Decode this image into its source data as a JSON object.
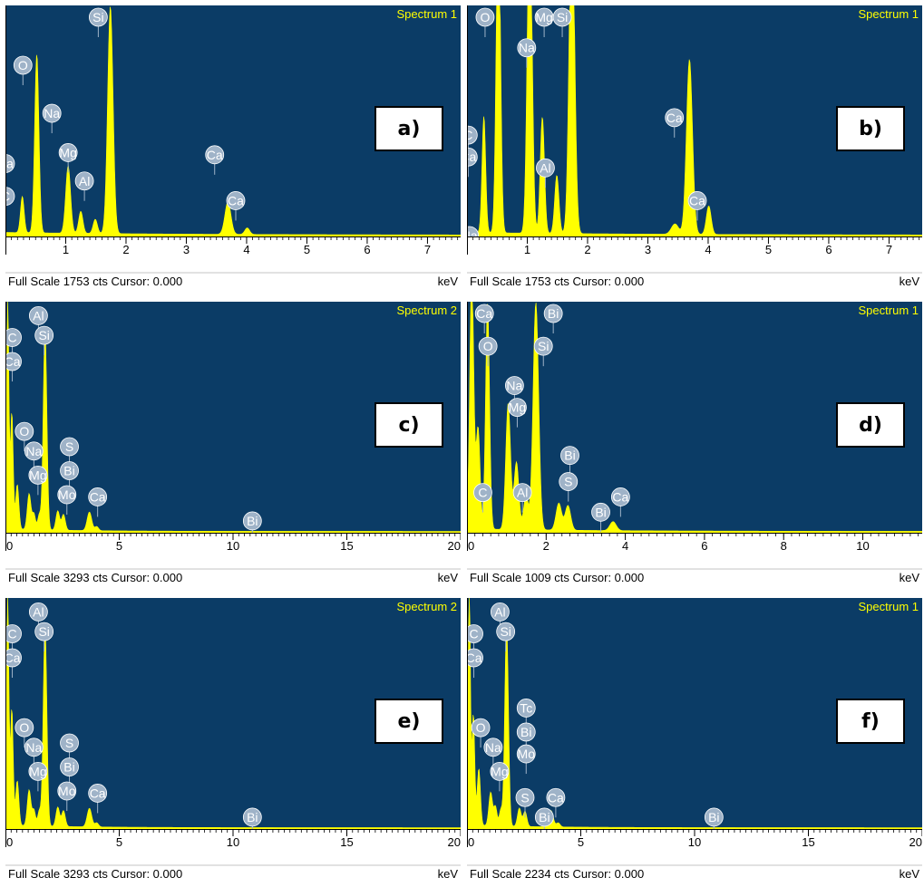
{
  "colors": {
    "plot_bg": "#0B3C66",
    "spectrum": "#FFFF00",
    "label_text": "#FFFF00",
    "footer_bg": "#FFFFFF",
    "footer_text": "#000000",
    "marker_fill": "#9FB3C8",
    "marker_text": "#FFFFFF"
  },
  "chart_data": [
    {
      "type": "area",
      "panel_tag": "a)",
      "spectrum_label": "Spectrum 1",
      "xlim": [
        0,
        7.55
      ],
      "ylim": [
        0,
        1753
      ],
      "xticks": [
        1,
        2,
        3,
        4,
        5,
        6,
        7
      ],
      "minor_step": 0.1,
      "footer_left": "Full Scale 1753 cts Cursor: 0.000",
      "footer_right": "keV",
      "peaks": [
        [
          0.28,
          280,
          0.03
        ],
        [
          0.52,
          1380,
          0.035
        ],
        [
          1.04,
          520,
          0.04
        ],
        [
          1.25,
          170,
          0.035
        ],
        [
          1.49,
          110,
          0.035
        ],
        [
          1.74,
          1753,
          0.045
        ],
        [
          3.69,
          250,
          0.05
        ],
        [
          4.01,
          50,
          0.04
        ]
      ],
      "elements": [
        {
          "label": "C",
          "energy": 0.0,
          "level": 0.18
        },
        {
          "label": "Ca",
          "energy": 0.0,
          "level": 0.33
        },
        {
          "label": "O",
          "energy": 0.29,
          "level": 0.78
        },
        {
          "label": "Na",
          "energy": 0.77,
          "level": 0.56
        },
        {
          "label": "Mg",
          "energy": 1.04,
          "level": 0.38
        },
        {
          "label": "Al",
          "energy": 1.31,
          "level": 0.25
        },
        {
          "label": "Si",
          "energy": 1.54,
          "level": 1.0
        },
        {
          "label": "Ca",
          "energy": 3.47,
          "level": 0.37
        },
        {
          "label": "Ca",
          "energy": 3.82,
          "level": 0.16
        }
      ]
    },
    {
      "type": "area",
      "panel_tag": "b)",
      "spectrum_label": "Spectrum 1",
      "xlim": [
        0,
        7.55
      ],
      "ylim": [
        0,
        1753
      ],
      "xticks": [
        1,
        2,
        3,
        4,
        5,
        6,
        7
      ],
      "minor_step": 0.1,
      "footer_left": "Full Scale 1753 cts Cursor: 0.000",
      "footer_right": "keV",
      "peaks": [
        [
          0.28,
          900,
          0.03
        ],
        [
          0.52,
          2600,
          0.035
        ],
        [
          1.04,
          2600,
          0.04
        ],
        [
          1.25,
          900,
          0.035
        ],
        [
          1.49,
          450,
          0.035
        ],
        [
          1.74,
          2600,
          0.045
        ],
        [
          3.69,
          1350,
          0.05
        ],
        [
          4.01,
          220,
          0.04
        ],
        [
          3.45,
          80,
          0.06
        ]
      ],
      "elements": [
        {
          "label": "C",
          "energy": 0.02,
          "level": 0.46
        },
        {
          "label": "Ca",
          "energy": 0.02,
          "level": 0.36
        },
        {
          "label": "O",
          "energy": 0.3,
          "level": 1.0
        },
        {
          "label": "Na",
          "energy": 0.04,
          "level": 0.0
        },
        {
          "label": "Mg",
          "energy": 1.28,
          "level": 1.0
        },
        {
          "label": "Na",
          "energy": 0.99,
          "level": 0.86
        },
        {
          "label": "Si",
          "energy": 1.58,
          "level": 1.0
        },
        {
          "label": "Al",
          "energy": 1.3,
          "level": 0.31
        },
        {
          "label": "Ca",
          "energy": 3.44,
          "level": 0.54
        },
        {
          "label": "Ca",
          "energy": 3.82,
          "level": 0.16
        }
      ]
    },
    {
      "type": "area",
      "panel_tag": "c)",
      "spectrum_label": "Spectrum 2",
      "xlim": [
        0,
        20
      ],
      "ylim": [
        0,
        3293
      ],
      "xticks": [
        0,
        5,
        10,
        15,
        20
      ],
      "minor_step": 0.25,
      "footer_left": "Full Scale 3293 cts Cursor: 0.000",
      "footer_right": "keV",
      "peaks": [
        [
          0.1,
          3400,
          0.05
        ],
        [
          0.28,
          1700,
          0.06
        ],
        [
          0.52,
          650,
          0.07
        ],
        [
          1.04,
          520,
          0.08
        ],
        [
          1.25,
          230,
          0.07
        ],
        [
          1.49,
          220,
          0.07
        ],
        [
          1.74,
          2900,
          0.08
        ],
        [
          2.3,
          280,
          0.08
        ],
        [
          2.55,
          230,
          0.08
        ],
        [
          3.69,
          270,
          0.1
        ],
        [
          4.01,
          60,
          0.08
        ]
      ],
      "elements": [
        {
          "label": "C",
          "energy": 0.3,
          "level": 0.89
        },
        {
          "label": "Al",
          "energy": 1.45,
          "level": 0.99
        },
        {
          "label": "Ca",
          "energy": 0.3,
          "level": 0.78
        },
        {
          "label": "Si",
          "energy": 1.7,
          "level": 0.9
        },
        {
          "label": "O",
          "energy": 0.83,
          "level": 0.46
        },
        {
          "label": "S",
          "energy": 2.81,
          "level": 0.39
        },
        {
          "label": "Na",
          "energy": 1.25,
          "level": 0.37
        },
        {
          "label": "Bi",
          "energy": 2.81,
          "level": 0.28
        },
        {
          "label": "Mg",
          "energy": 1.43,
          "level": 0.26
        },
        {
          "label": "Mo",
          "energy": 2.7,
          "level": 0.17
        },
        {
          "label": "Ca",
          "energy": 4.05,
          "level": 0.16
        },
        {
          "label": "Bi",
          "energy": 10.85,
          "level": 0.05
        }
      ]
    },
    {
      "type": "area",
      "panel_tag": "d)",
      "spectrum_label": "Spectrum 1",
      "xlim": [
        0,
        11.5
      ],
      "ylim": [
        0,
        1009
      ],
      "xticks": [
        0,
        2,
        4,
        6,
        8,
        10
      ],
      "minor_step": 0.2,
      "footer_left": "Full Scale 1009 cts Cursor: 0.000",
      "footer_right": "keV",
      "peaks": [
        [
          0.12,
          1150,
          0.05
        ],
        [
          0.28,
          450,
          0.05
        ],
        [
          0.52,
          1000,
          0.05
        ],
        [
          1.04,
          560,
          0.06
        ],
        [
          1.25,
          300,
          0.06
        ],
        [
          1.49,
          150,
          0.06
        ],
        [
          1.74,
          1010,
          0.07
        ],
        [
          2.32,
          120,
          0.07
        ],
        [
          2.55,
          110,
          0.07
        ],
        [
          3.69,
          40,
          0.08
        ]
      ],
      "elements": [
        {
          "label": "Ca",
          "energy": 0.44,
          "level": 1.0
        },
        {
          "label": "Bi",
          "energy": 2.18,
          "level": 1.0
        },
        {
          "label": "O",
          "energy": 0.53,
          "level": 0.85
        },
        {
          "label": "Si",
          "energy": 1.93,
          "level": 0.85
        },
        {
          "label": "Na",
          "energy": 1.2,
          "level": 0.67
        },
        {
          "label": "Mg",
          "energy": 1.27,
          "level": 0.57
        },
        {
          "label": "Bi",
          "energy": 2.6,
          "level": 0.35
        },
        {
          "label": "S",
          "energy": 2.56,
          "level": 0.23
        },
        {
          "label": "C",
          "energy": 0.4,
          "level": 0.18
        },
        {
          "label": "Al",
          "energy": 1.4,
          "level": 0.18
        },
        {
          "label": "Bi",
          "energy": 3.38,
          "level": 0.09
        },
        {
          "label": "Ca",
          "energy": 3.88,
          "level": 0.16
        }
      ]
    },
    {
      "type": "area",
      "panel_tag": "e)",
      "spectrum_label": "Spectrum 2",
      "xlim": [
        0,
        20
      ],
      "ylim": [
        0,
        3293
      ],
      "xticks": [
        0,
        5,
        10,
        15,
        20
      ],
      "minor_step": 0.25,
      "footer_left": "Full Scale 3293 cts Cursor: 0.000",
      "footer_right": "keV",
      "peaks": [
        [
          0.1,
          3400,
          0.05
        ],
        [
          0.28,
          1700,
          0.06
        ],
        [
          0.52,
          650,
          0.07
        ],
        [
          1.04,
          520,
          0.08
        ],
        [
          1.25,
          230,
          0.07
        ],
        [
          1.49,
          220,
          0.07
        ],
        [
          1.74,
          2900,
          0.08
        ],
        [
          2.3,
          280,
          0.08
        ],
        [
          2.55,
          230,
          0.08
        ],
        [
          3.69,
          270,
          0.1
        ],
        [
          4.01,
          60,
          0.08
        ]
      ],
      "elements": [
        {
          "label": "C",
          "energy": 0.3,
          "level": 0.89
        },
        {
          "label": "Al",
          "energy": 1.45,
          "level": 0.99
        },
        {
          "label": "Ca",
          "energy": 0.3,
          "level": 0.78
        },
        {
          "label": "Si",
          "energy": 1.7,
          "level": 0.9
        },
        {
          "label": "O",
          "energy": 0.83,
          "level": 0.46
        },
        {
          "label": "S",
          "energy": 2.81,
          "level": 0.39
        },
        {
          "label": "Na",
          "energy": 1.25,
          "level": 0.37
        },
        {
          "label": "Bi",
          "energy": 2.81,
          "level": 0.28
        },
        {
          "label": "Mg",
          "energy": 1.43,
          "level": 0.26
        },
        {
          "label": "Mo",
          "energy": 2.7,
          "level": 0.17
        },
        {
          "label": "Ca",
          "energy": 4.05,
          "level": 0.16
        },
        {
          "label": "Bi",
          "energy": 10.85,
          "level": 0.05
        }
      ]
    },
    {
      "type": "area",
      "panel_tag": "f)",
      "spectrum_label": "Spectrum 1",
      "xlim": [
        0,
        20
      ],
      "ylim": [
        0,
        2234
      ],
      "xticks": [
        0,
        5,
        10,
        15,
        20
      ],
      "minor_step": 0.25,
      "footer_left": "Full Scale 2234 cts Cursor: 0.000",
      "footer_right": "keV",
      "peaks": [
        [
          0.1,
          2400,
          0.05
        ],
        [
          0.28,
          1100,
          0.06
        ],
        [
          0.52,
          560,
          0.07
        ],
        [
          1.04,
          330,
          0.08
        ],
        [
          1.25,
          190,
          0.07
        ],
        [
          1.49,
          160,
          0.07
        ],
        [
          1.74,
          2000,
          0.08
        ],
        [
          2.3,
          180,
          0.08
        ],
        [
          2.55,
          150,
          0.08
        ],
        [
          3.69,
          160,
          0.1
        ],
        [
          4.01,
          40,
          0.08
        ]
      ],
      "elements": [
        {
          "label": "C",
          "energy": 0.3,
          "level": 0.89
        },
        {
          "label": "Al",
          "energy": 1.45,
          "level": 0.99
        },
        {
          "label": "Ca",
          "energy": 0.3,
          "level": 0.78
        },
        {
          "label": "Si",
          "energy": 1.7,
          "level": 0.9
        },
        {
          "label": "Tc",
          "energy": 2.6,
          "level": 0.55
        },
        {
          "label": "O",
          "energy": 0.6,
          "level": 0.46
        },
        {
          "label": "Bi",
          "energy": 2.6,
          "level": 0.44
        },
        {
          "label": "Na",
          "energy": 1.15,
          "level": 0.37
        },
        {
          "label": "Mo",
          "energy": 2.6,
          "level": 0.34
        },
        {
          "label": "Mg",
          "energy": 1.43,
          "level": 0.26
        },
        {
          "label": "S",
          "energy": 2.55,
          "level": 0.14
        },
        {
          "label": "Ca",
          "energy": 3.9,
          "level": 0.14
        },
        {
          "label": "Bi",
          "energy": 3.4,
          "level": 0.05
        },
        {
          "label": "Bi",
          "energy": 10.85,
          "level": 0.05
        }
      ]
    }
  ]
}
